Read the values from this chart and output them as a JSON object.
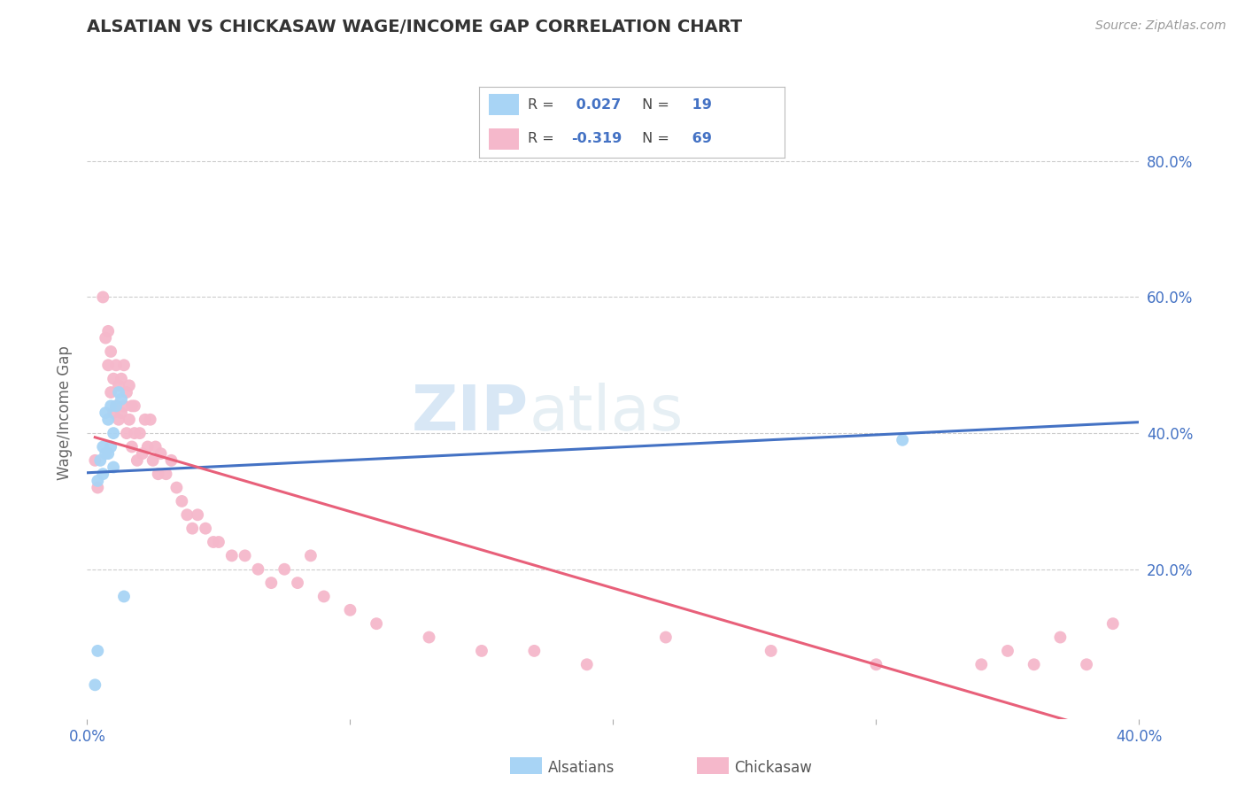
{
  "title": "ALSATIAN VS CHICKASAW WAGE/INCOME GAP CORRELATION CHART",
  "source": "Source: ZipAtlas.com",
  "ylabel": "Wage/Income Gap",
  "xlim": [
    0.0,
    0.4
  ],
  "ylim": [
    -0.02,
    0.88
  ],
  "xticks": [
    0.0,
    0.1,
    0.2,
    0.3,
    0.4
  ],
  "xtick_labels": [
    "0.0%",
    "",
    "",
    "",
    "40.0%"
  ],
  "ytick_values": [
    0.2,
    0.4,
    0.6,
    0.8
  ],
  "ytick_labels": [
    "20.0%",
    "40.0%",
    "60.0%",
    "80.0%"
  ],
  "r_alsatian": 0.027,
  "n_alsatian": 19,
  "r_chickasaw": -0.319,
  "n_chickasaw": 69,
  "alsatian_color": "#a8d4f5",
  "chickasaw_color": "#f5b8cb",
  "alsatian_line_color": "#4472c4",
  "chickasaw_line_color": "#e8607a",
  "background_color": "#ffffff",
  "alsatian_x": [
    0.003,
    0.004,
    0.004,
    0.005,
    0.006,
    0.006,
    0.007,
    0.007,
    0.008,
    0.008,
    0.009,
    0.009,
    0.01,
    0.01,
    0.011,
    0.012,
    0.013,
    0.014,
    0.31
  ],
  "alsatian_y": [
    0.03,
    0.08,
    0.33,
    0.36,
    0.34,
    0.38,
    0.37,
    0.43,
    0.37,
    0.42,
    0.38,
    0.44,
    0.35,
    0.4,
    0.44,
    0.46,
    0.45,
    0.16,
    0.39
  ],
  "chickasaw_x": [
    0.003,
    0.004,
    0.006,
    0.007,
    0.008,
    0.008,
    0.009,
    0.009,
    0.01,
    0.01,
    0.011,
    0.011,
    0.012,
    0.012,
    0.013,
    0.013,
    0.014,
    0.014,
    0.015,
    0.015,
    0.016,
    0.016,
    0.017,
    0.017,
    0.018,
    0.018,
    0.019,
    0.02,
    0.021,
    0.022,
    0.023,
    0.024,
    0.025,
    0.026,
    0.027,
    0.028,
    0.03,
    0.032,
    0.034,
    0.036,
    0.038,
    0.04,
    0.042,
    0.045,
    0.048,
    0.05,
    0.055,
    0.06,
    0.065,
    0.07,
    0.075,
    0.08,
    0.085,
    0.09,
    0.1,
    0.11,
    0.13,
    0.15,
    0.17,
    0.19,
    0.22,
    0.26,
    0.3,
    0.34,
    0.35,
    0.36,
    0.37,
    0.38,
    0.39
  ],
  "chickasaw_y": [
    0.36,
    0.32,
    0.6,
    0.54,
    0.5,
    0.55,
    0.46,
    0.52,
    0.43,
    0.48,
    0.44,
    0.5,
    0.42,
    0.47,
    0.43,
    0.48,
    0.44,
    0.5,
    0.4,
    0.46,
    0.42,
    0.47,
    0.38,
    0.44,
    0.4,
    0.44,
    0.36,
    0.4,
    0.37,
    0.42,
    0.38,
    0.42,
    0.36,
    0.38,
    0.34,
    0.37,
    0.34,
    0.36,
    0.32,
    0.3,
    0.28,
    0.26,
    0.28,
    0.26,
    0.24,
    0.24,
    0.22,
    0.22,
    0.2,
    0.18,
    0.2,
    0.18,
    0.22,
    0.16,
    0.14,
    0.12,
    0.1,
    0.08,
    0.08,
    0.06,
    0.1,
    0.08,
    0.06,
    0.06,
    0.08,
    0.06,
    0.1,
    0.06,
    0.12
  ]
}
